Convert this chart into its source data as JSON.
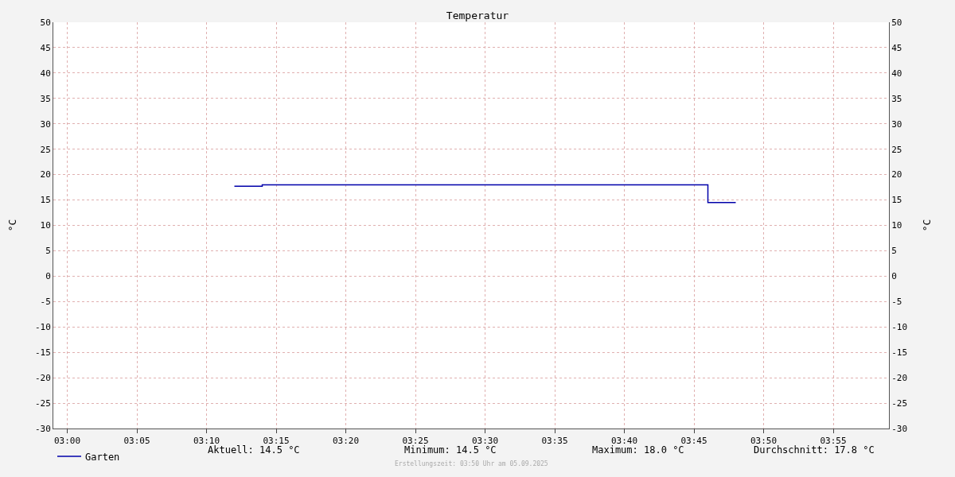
{
  "chart_data": {
    "type": "step",
    "title": "Temperatur",
    "ylabel": "°C",
    "y2label": "°C",
    "x": [
      "2025-09-05T03:12",
      "2025-09-05T03:14",
      "2025-09-05T03:46",
      "2025-09-05T03:48"
    ],
    "series": [
      {
        "name": "Garten",
        "color": "#0000aa",
        "values": [
          17.7,
          18.0,
          14.5,
          14.5
        ]
      }
    ],
    "xlim": [
      "2025-09-05T02:59",
      "2025-09-05T03:59"
    ],
    "xticks": [
      {
        "value": "2025-09-05T03:00",
        "label": "03:00"
      },
      {
        "value": "2025-09-05T03:05",
        "label": "03:05"
      },
      {
        "value": "2025-09-05T03:10",
        "label": "03:10"
      },
      {
        "value": "2025-09-05T03:15",
        "label": "03:15"
      },
      {
        "value": "2025-09-05T03:20",
        "label": "03:20"
      },
      {
        "value": "2025-09-05T03:25",
        "label": "03:25"
      },
      {
        "value": "2025-09-05T03:30",
        "label": "03:30"
      },
      {
        "value": "2025-09-05T03:35",
        "label": "03:35"
      },
      {
        "value": "2025-09-05T03:40",
        "label": "03:40"
      },
      {
        "value": "2025-09-05T03:45",
        "label": "03:45"
      },
      {
        "value": "2025-09-05T03:50",
        "label": "03:50"
      },
      {
        "value": "2025-09-05T03:55",
        "label": "03:55"
      }
    ],
    "ylim": [
      -30,
      50
    ],
    "yticks": [
      -30,
      -25,
      -20,
      -15,
      -10,
      -5,
      0,
      5,
      10,
      15,
      20,
      25,
      30,
      35,
      40,
      45,
      50
    ],
    "y2lim": [
      -30,
      50
    ],
    "y2ticks": [
      -30,
      -25,
      -20,
      -15,
      -10,
      -5,
      0,
      5,
      10,
      15,
      20,
      25,
      30,
      35,
      40,
      45,
      50
    ],
    "grid": true,
    "legend": "bottom left",
    "annotations": [
      "Aktuell: 14.5 °C",
      "Minimum: 14.5 °C",
      "Maximum: 18.0 °C",
      "Durchschnitt: 17.8 °C",
      "Erstellungszeit: 03:50 Uhr am 05.09.2025"
    ]
  }
}
